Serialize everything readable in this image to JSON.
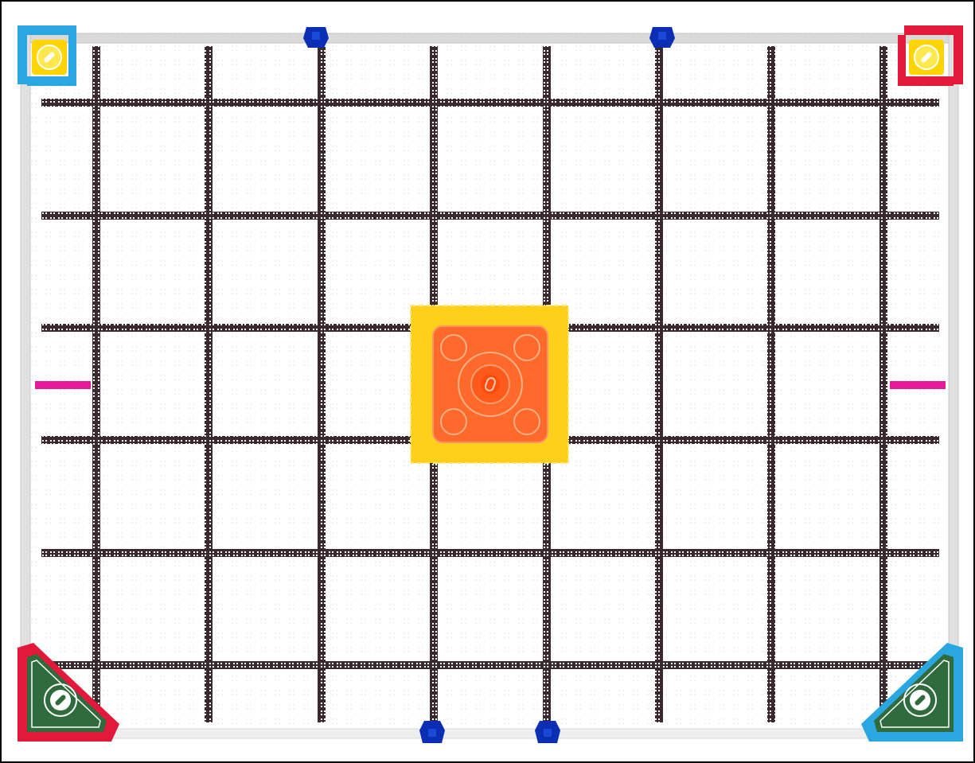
{
  "field": {
    "grid_columns": 8,
    "grid_rows": 6,
    "colors": {
      "frame": "#000000",
      "wall": "#d9d9d9",
      "tile_line": "#3b2a2d",
      "tile_dot": "#ffffff",
      "blue": "#1f7fd1",
      "light_blue": "#2aa7e0",
      "red": "#e3193b",
      "yellow": "#ffd400",
      "goal_yellow": "#ffcf1a",
      "orange": "#ff6a2b",
      "green": "#2f6b3c",
      "navy": "#0a2fb4",
      "magenta": "#e51a9a"
    }
  },
  "elements": {
    "corner_goal_top_left": {
      "color": "light_blue",
      "goal_color": "yellow"
    },
    "corner_goal_top_right": {
      "color": "red",
      "goal_color": "yellow"
    },
    "corner_goal_bottom_left": {
      "color": "red",
      "goal_color": "green"
    },
    "corner_goal_bottom_right": {
      "color": "light_blue",
      "goal_color": "green"
    },
    "center_platform": {
      "outer_color": "goal_yellow",
      "inner_color": "orange"
    },
    "wall_connectors": 4,
    "side_markers": 2
  }
}
